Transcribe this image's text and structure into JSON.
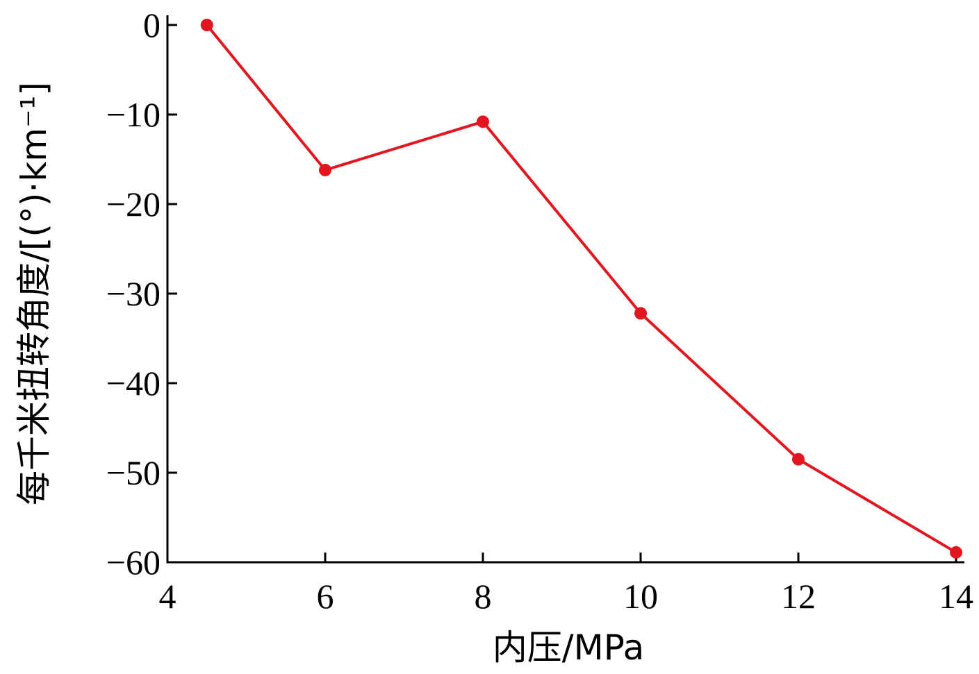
{
  "chart_data": {
    "type": "line",
    "xlabel": "内压/MPa",
    "ylabel": "每千米扭转角度/[(°)·km⁻¹]",
    "xlim": [
      4,
      14
    ],
    "ylim": [
      -60,
      0
    ],
    "xticks": [
      4,
      6,
      8,
      10,
      12,
      14
    ],
    "yticks": [
      0,
      -10,
      -20,
      -30,
      -40,
      -50,
      -60
    ],
    "ytick_labels": [
      "0",
      "−10",
      "−20",
      "−30",
      "−40",
      "−50",
      "−60"
    ],
    "grid": false,
    "series": [
      {
        "color": "#e3161f",
        "marker": "circle",
        "x": [
          4.5,
          6,
          8,
          10,
          12,
          14
        ],
        "y": [
          0,
          -16.2,
          -10.8,
          -32.2,
          -48.5,
          -58.9
        ]
      }
    ]
  }
}
